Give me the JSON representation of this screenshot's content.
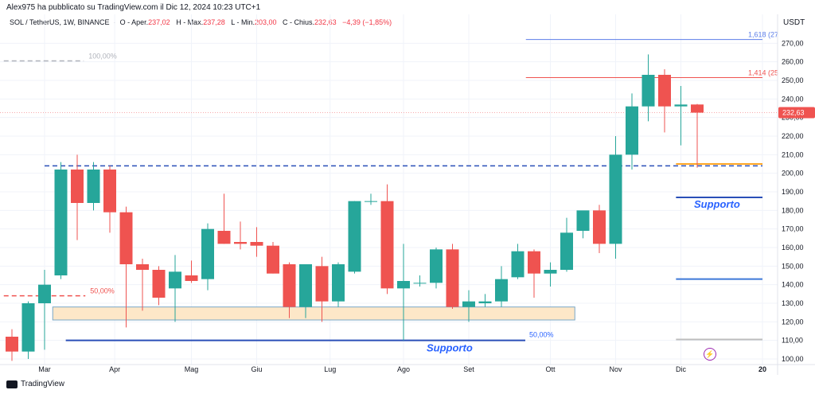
{
  "publisher": "Alex975 ha pubblicato su TradingView.com il Dic 12, 2024 10:23 UTC+1",
  "legend": {
    "symbol": "SOL / TetherUS, 1W, BINANCE",
    "open_label": "O - Aper.",
    "open": "237,02",
    "high_label": "H - Max.",
    "high": "237,28",
    "low_label": "L - Min.",
    "low": "203,00",
    "close_label": "C - Chius.",
    "close": "232,63",
    "change": "−4,39 (−1,85%)"
  },
  "currency": "USDT",
  "brand": "TradingView",
  "colors": {
    "up": "#26a69a",
    "down": "#ef5350",
    "support": "#2962ff",
    "fib_top": "#5b7de8",
    "fib_red": "#ef5350",
    "orange": "#ffa726",
    "zone": "#fde7c8"
  },
  "chart_data": {
    "type": "candlestick",
    "y_axis": {
      "min": 97,
      "max": 277,
      "ticks": [
        "100,00",
        "110,00",
        "120,00",
        "130,00",
        "140,00",
        "150,00",
        "160,00",
        "170,00",
        "180,00",
        "190,00",
        "200,00",
        "210,00",
        "220,00",
        "230,00",
        "240,00",
        "250,00",
        "260,00",
        "270,00"
      ]
    },
    "x_axis_labels": [
      {
        "label": "Mar",
        "i": 2
      },
      {
        "label": "Apr",
        "i": 6.3
      },
      {
        "label": "Mag",
        "i": 11
      },
      {
        "label": "Giu",
        "i": 15
      },
      {
        "label": "Lug",
        "i": 19.5
      },
      {
        "label": "Ago",
        "i": 24
      },
      {
        "label": "Set",
        "i": 28
      },
      {
        "label": "Ott",
        "i": 33
      },
      {
        "label": "Nov",
        "i": 37
      },
      {
        "label": "Dic",
        "i": 41
      },
      {
        "label": "20",
        "i": 46
      }
    ],
    "last_price": {
      "value": 232.63,
      "label": "232,63"
    },
    "candles": [
      {
        "o": 112,
        "h": 116,
        "l": 99,
        "c": 104
      },
      {
        "o": 104,
        "h": 131,
        "l": 100,
        "c": 130
      },
      {
        "o": 130,
        "h": 148,
        "l": 105,
        "c": 140
      },
      {
        "o": 145,
        "h": 206,
        "l": 143,
        "c": 202
      },
      {
        "o": 202,
        "h": 210,
        "l": 164,
        "c": 184
      },
      {
        "o": 184,
        "h": 206,
        "l": 180,
        "c": 202
      },
      {
        "o": 202,
        "h": 204,
        "l": 168,
        "c": 179
      },
      {
        "o": 179,
        "h": 182,
        "l": 117,
        "c": 151
      },
      {
        "o": 151,
        "h": 154,
        "l": 126,
        "c": 148
      },
      {
        "o": 148,
        "h": 150,
        "l": 129,
        "c": 133
      },
      {
        "o": 138,
        "h": 156,
        "l": 120,
        "c": 147
      },
      {
        "o": 145,
        "h": 153,
        "l": 141,
        "c": 142
      },
      {
        "o": 143,
        "h": 173,
        "l": 137,
        "c": 170
      },
      {
        "o": 169,
        "h": 189,
        "l": 162,
        "c": 162
      },
      {
        "o": 163,
        "h": 174,
        "l": 159,
        "c": 162
      },
      {
        "o": 163,
        "h": 171,
        "l": 155,
        "c": 161
      },
      {
        "o": 161,
        "h": 163,
        "l": 146,
        "c": 146
      },
      {
        "o": 151,
        "h": 152,
        "l": 122,
        "c": 128
      },
      {
        "o": 128,
        "h": 151,
        "l": 122,
        "c": 151
      },
      {
        "o": 150,
        "h": 155,
        "l": 120,
        "c": 131
      },
      {
        "o": 131,
        "h": 152,
        "l": 128,
        "c": 151
      },
      {
        "o": 147,
        "h": 185,
        "l": 146,
        "c": 185
      },
      {
        "o": 185,
        "h": 189,
        "l": 183,
        "c": 185
      },
      {
        "o": 185,
        "h": 194,
        "l": 135,
        "c": 138
      },
      {
        "o": 138,
        "h": 162,
        "l": 110,
        "c": 142
      },
      {
        "o": 141,
        "h": 145,
        "l": 139,
        "c": 141
      },
      {
        "o": 141,
        "h": 160,
        "l": 138,
        "c": 159
      },
      {
        "o": 159,
        "h": 162,
        "l": 127,
        "c": 128
      },
      {
        "o": 128,
        "h": 137,
        "l": 120,
        "c": 131
      },
      {
        "o": 130,
        "h": 135,
        "l": 128,
        "c": 131
      },
      {
        "o": 131,
        "h": 150,
        "l": 128,
        "c": 143
      },
      {
        "o": 144,
        "h": 162,
        "l": 143,
        "c": 158
      },
      {
        "o": 158,
        "h": 159,
        "l": 133,
        "c": 146
      },
      {
        "o": 146,
        "h": 152,
        "l": 139,
        "c": 148
      },
      {
        "o": 148,
        "h": 176,
        "l": 147,
        "c": 168
      },
      {
        "o": 169,
        "h": 179,
        "l": 165,
        "c": 180
      },
      {
        "o": 180,
        "h": 183,
        "l": 157,
        "c": 162
      },
      {
        "o": 162,
        "h": 220,
        "l": 154,
        "c": 210
      },
      {
        "o": 210,
        "h": 243,
        "l": 202,
        "c": 236
      },
      {
        "o": 236,
        "h": 264,
        "l": 228,
        "c": 253
      },
      {
        "o": 253,
        "h": 256,
        "l": 222,
        "c": 236
      },
      {
        "o": 236,
        "h": 247,
        "l": 215,
        "c": 237
      },
      {
        "o": 237.02,
        "h": 237.28,
        "l": 203,
        "c": 232.63
      }
    ],
    "annotations": {
      "fib_levels": [
        {
          "label": "1,618 (27",
          "value": 272,
          "i_from": 31.5,
          "i_to": 46,
          "color": "#5b7de8"
        },
        {
          "label": "1,414 (25",
          "value": 251.5,
          "i_from": 31.5,
          "i_to": 46,
          "color": "#ef5350"
        },
        {
          "label": "100,00%",
          "value": 260.5,
          "i_from": -0.5,
          "i_to": 4.4,
          "color": "#b0b3bb"
        },
        {
          "label": "50,00%",
          "value": 134,
          "i_from": -0.5,
          "i_to": 4.5,
          "color": "#ef5350"
        }
      ],
      "resistance_dashed": {
        "value": 204,
        "i_from": 2,
        "i_to": 46
      },
      "support_lines": [
        {
          "label": "Supporto",
          "value": 110,
          "i_from": 3.3,
          "i_to": 31.5
        },
        {
          "label": "Supporto",
          "value": 187,
          "i_from": 40.7,
          "i_to": 46
        }
      ],
      "support_label_50": {
        "label": "50,00%",
        "value": 110
      },
      "lower_blue_line": {
        "value": 143,
        "i_from": 40.7,
        "i_to": 46
      },
      "grey_line": {
        "value": 110.5,
        "i_from": 40.7,
        "i_to": 46
      },
      "orange_line": {
        "value": 205,
        "i_from": 40.7,
        "i_to": 46
      },
      "zone": {
        "y_low": 121,
        "y_high": 128,
        "i_from": 2.5,
        "i_to": 34.5
      }
    }
  }
}
